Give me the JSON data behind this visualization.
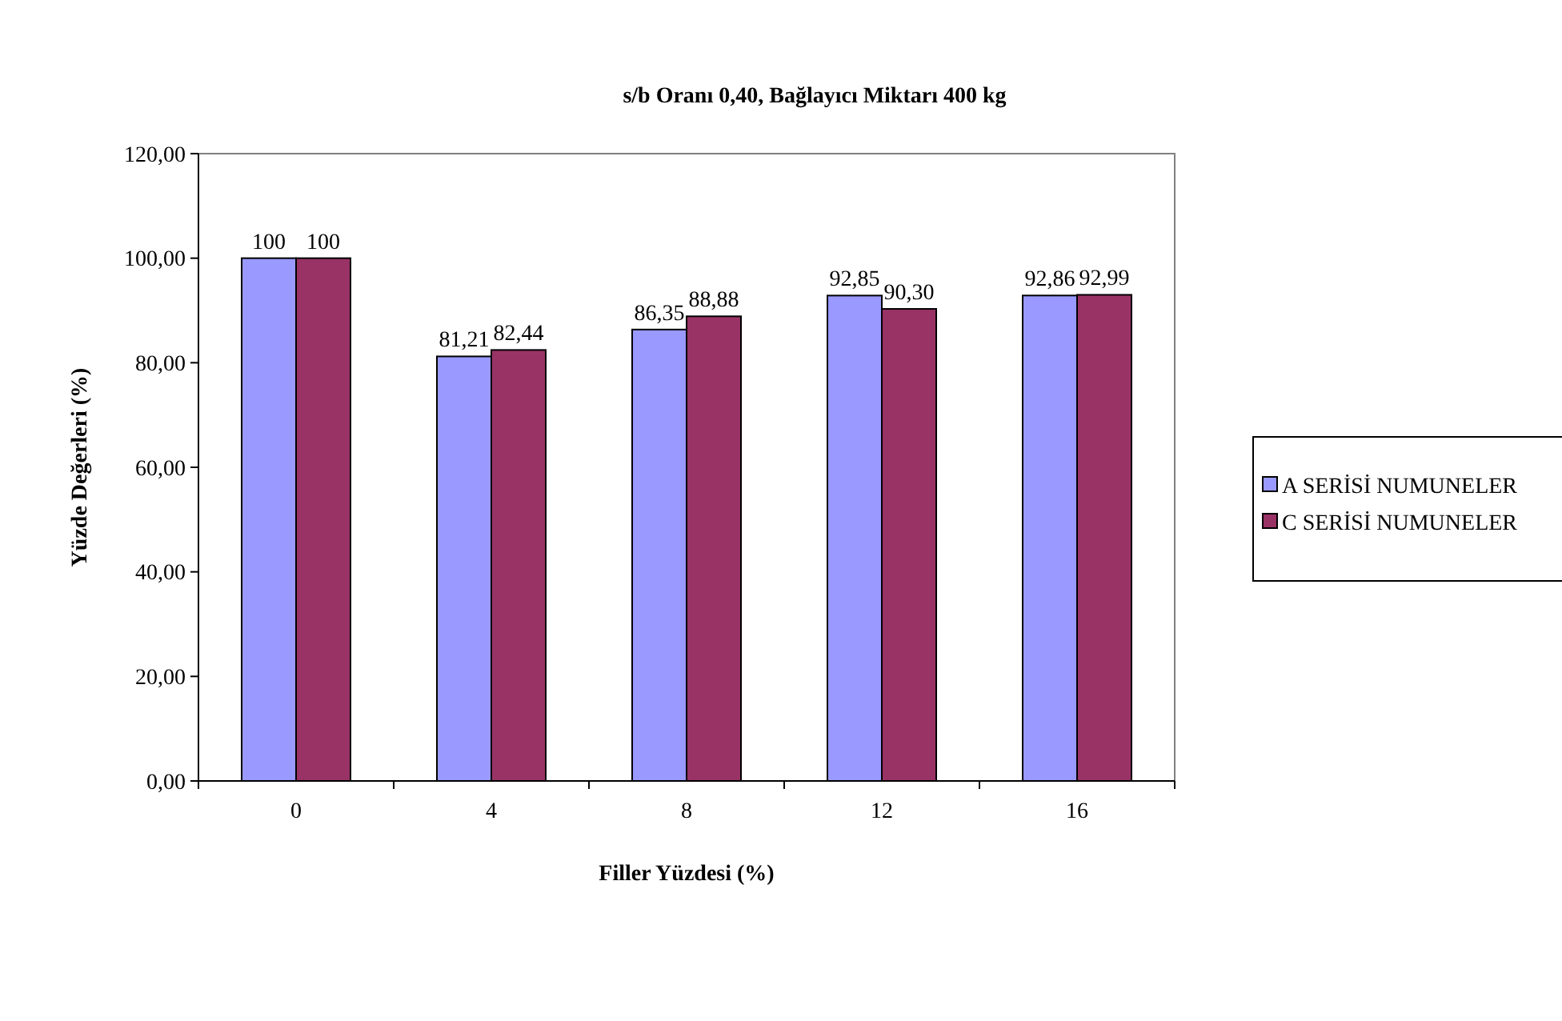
{
  "chart_data": {
    "type": "bar",
    "title": "s/b Oranı 0,40, Bağlayıcı Miktarı 400 kg",
    "xlabel": "Filler Yüzdesi (%)",
    "ylabel": "Yüzde Değerleri (%)",
    "categories": [
      "0",
      "4",
      "8",
      "12",
      "16"
    ],
    "series": [
      {
        "name": "A SERİSİ NUMUNELER",
        "color": "#9999ff",
        "values": [
          100,
          81.21,
          86.35,
          92.85,
          92.86
        ],
        "value_labels": [
          "100",
          "81,21",
          "86,35",
          "92,85",
          "92,86"
        ]
      },
      {
        "name": "C SERİSİ NUMUNELER",
        "color": "#993366",
        "values": [
          100,
          82.44,
          88.88,
          90.3,
          92.99
        ],
        "value_labels": [
          "100",
          "82,44",
          "88,88",
          "90,30",
          "92,99"
        ]
      }
    ],
    "ylim": [
      0,
      120
    ],
    "yticks": [
      {
        "value": 0,
        "label": "0,00"
      },
      {
        "value": 20,
        "label": "20,00"
      },
      {
        "value": 40,
        "label": "40,00"
      },
      {
        "value": 60,
        "label": "60,00"
      },
      {
        "value": 80,
        "label": "80,00"
      },
      {
        "value": 100,
        "label": "100,00"
      },
      {
        "value": 120,
        "label": "120,00"
      }
    ],
    "grid": false,
    "legend": "right"
  }
}
